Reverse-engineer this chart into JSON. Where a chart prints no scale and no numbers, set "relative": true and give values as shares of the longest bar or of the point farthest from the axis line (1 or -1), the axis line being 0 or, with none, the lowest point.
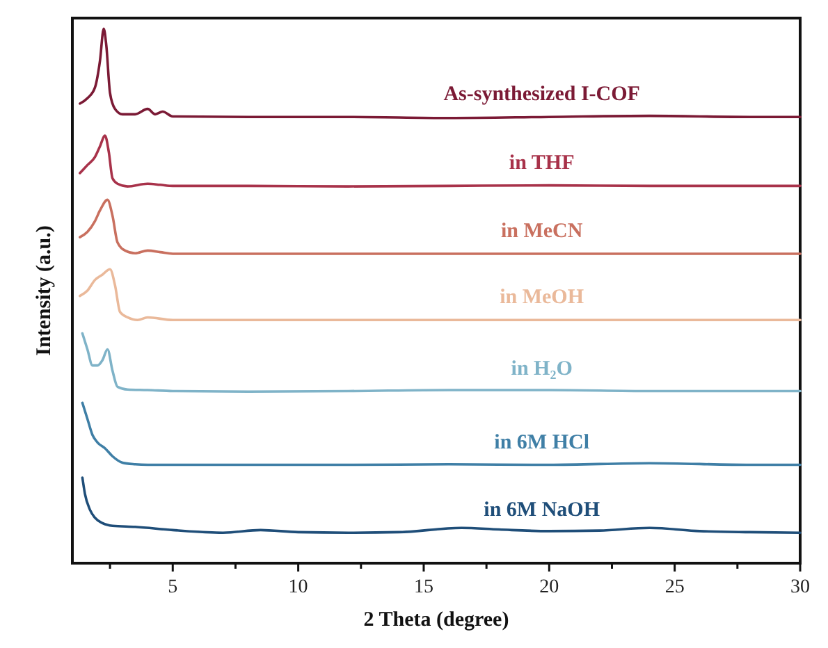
{
  "chart_data": {
    "type": "line",
    "relative": true,
    "xlabel": "2 Theta (degree)",
    "ylabel": "Intensity (a.u.)",
    "xlim": [
      1,
      30
    ],
    "xticks": [
      {
        "value": 2.5,
        "label": null
      },
      5,
      {
        "value": 7.5,
        "label": null
      },
      10,
      {
        "value": 12.5,
        "label": null
      },
      15,
      {
        "value": 17.5,
        "label": null
      },
      20,
      {
        "value": 22.5,
        "label": null
      },
      25,
      {
        "value": 27.5,
        "label": null
      },
      30
    ],
    "grid": false,
    "marker": "none",
    "line_style": "solid",
    "series": [
      {
        "name": "As-synthesized I-COF",
        "color": "#7b1a35",
        "x": [
          1.3,
          1.6,
          1.9,
          2.1,
          2.25,
          2.35,
          2.5,
          2.7,
          3,
          3.5,
          4,
          4.3,
          4.6,
          5,
          8,
          12,
          16,
          20,
          24,
          28,
          30
        ],
        "values": [
          0.86,
          0.87,
          0.89,
          0.94,
          1.0,
          0.97,
          0.88,
          0.85,
          0.84,
          0.84,
          0.85,
          0.84,
          0.845,
          0.836,
          0.835,
          0.835,
          0.833,
          0.835,
          0.837,
          0.835,
          0.835
        ]
      },
      {
        "name": "in THF",
        "color": "#a8324a",
        "x": [
          1.3,
          1.6,
          1.9,
          2.1,
          2.3,
          2.45,
          2.6,
          2.8,
          3.2,
          4,
          4.5,
          5,
          8,
          12,
          16,
          20,
          24,
          28,
          30
        ],
        "values": [
          0.73,
          0.745,
          0.76,
          0.78,
          0.8,
          0.77,
          0.72,
          0.71,
          0.705,
          0.71,
          0.708,
          0.706,
          0.706,
          0.705,
          0.706,
          0.707,
          0.706,
          0.706,
          0.706
        ]
      },
      {
        "name": "in MeCN",
        "color": "#c9705f",
        "x": [
          1.3,
          1.6,
          1.9,
          2.1,
          2.4,
          2.6,
          2.8,
          3.1,
          3.5,
          4,
          4.5,
          5,
          8,
          12,
          16,
          20,
          24,
          28,
          30
        ],
        "values": [
          0.61,
          0.62,
          0.64,
          0.66,
          0.68,
          0.65,
          0.6,
          0.585,
          0.58,
          0.585,
          0.582,
          0.579,
          0.579,
          0.579,
          0.579,
          0.579,
          0.579,
          0.579,
          0.579
        ]
      },
      {
        "name": "in MeOH",
        "color": "#eab99a",
        "x": [
          1.3,
          1.6,
          1.9,
          2.2,
          2.5,
          2.7,
          2.9,
          3.2,
          3.6,
          4,
          5,
          8,
          12,
          16,
          20,
          24,
          28,
          30
        ],
        "values": [
          0.5,
          0.51,
          0.53,
          0.54,
          0.55,
          0.52,
          0.47,
          0.46,
          0.455,
          0.46,
          0.455,
          0.455,
          0.455,
          0.455,
          0.455,
          0.455,
          0.455,
          0.455
        ]
      },
      {
        "name": "in H₂O",
        "color": "#7fb3c8",
        "x": [
          1.4,
          1.6,
          1.8,
          2.0,
          2.2,
          2.4,
          2.6,
          2.8,
          3.2,
          4,
          5,
          8,
          12,
          16,
          20,
          24,
          28,
          30
        ],
        "values": [
          0.43,
          0.4,
          0.37,
          0.37,
          0.38,
          0.4,
          0.36,
          0.33,
          0.325,
          0.324,
          0.322,
          0.321,
          0.322,
          0.324,
          0.324,
          0.322,
          0.322,
          0.322
        ]
      },
      {
        "name": "in 6M HCl",
        "color": "#3f7fa6",
        "x": [
          1.4,
          1.6,
          1.8,
          2.0,
          2.3,
          2.6,
          3.0,
          3.5,
          4,
          5,
          8,
          12,
          16,
          20,
          24,
          28,
          30
        ],
        "values": [
          0.3,
          0.27,
          0.24,
          0.226,
          0.215,
          0.2,
          0.188,
          0.185,
          0.184,
          0.184,
          0.184,
          0.184,
          0.185,
          0.184,
          0.187,
          0.184,
          0.184
        ]
      },
      {
        "name": "in 6M NaOH",
        "color": "#1f4e79",
        "x": [
          1.4,
          1.5,
          1.7,
          1.9,
          2.2,
          2.6,
          3.5,
          5,
          7,
          8.5,
          10,
          12,
          14,
          16.5,
          18,
          20,
          22,
          24,
          26,
          28,
          30
        ],
        "values": [
          0.16,
          0.13,
          0.1,
          0.085,
          0.075,
          0.07,
          0.068,
          0.062,
          0.057,
          0.062,
          0.058,
          0.057,
          0.058,
          0.066,
          0.063,
          0.06,
          0.061,
          0.066,
          0.06,
          0.058,
          0.057
        ]
      }
    ]
  }
}
